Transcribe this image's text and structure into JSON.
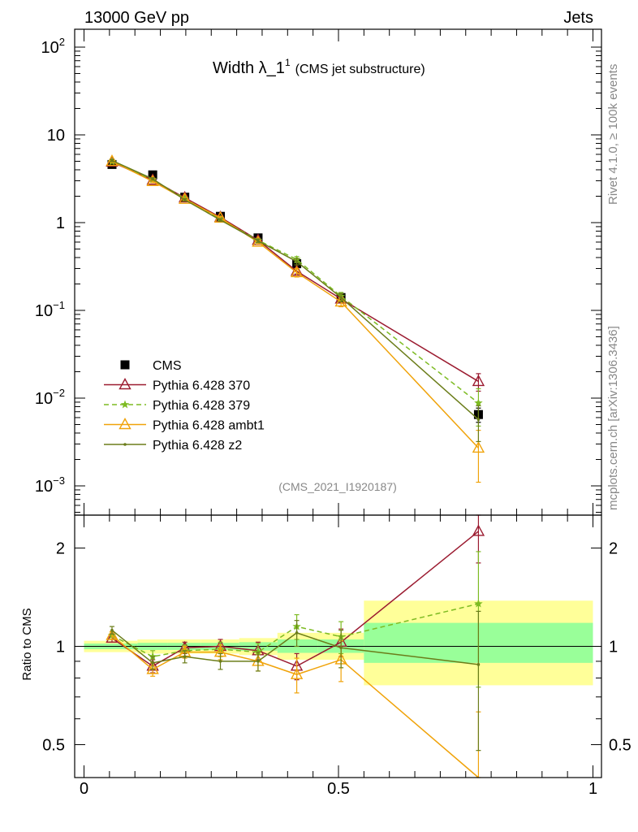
{
  "header": {
    "left": "13000 GeV pp",
    "right": "Jets",
    "title": "Width λ_1",
    "title_sup": "1",
    "title_suffix": "(CMS jet substructure)"
  },
  "side_labels": {
    "rivet": "Rivet 4.1.0, ≥ 100k events",
    "mcplots": "mcplots.cern.ch [arXiv:1306.3436]"
  },
  "analysis_id": "(CMS_2021_I1920187)",
  "ratio_ylabel": "Ratio to CMS",
  "main_yticks": [
    {
      "base": "10",
      "sup": "2"
    },
    {
      "base": "10",
      "sup": ""
    },
    {
      "base": "1",
      "sup": ""
    },
    {
      "base": "10",
      "sup": "−1"
    },
    {
      "base": "10",
      "sup": "−2"
    },
    {
      "base": "10",
      "sup": "−3"
    }
  ],
  "ratio_yticks": [
    "2",
    "1",
    "0.5"
  ],
  "xticks": [
    "0",
    "0.5",
    "1"
  ],
  "chart_data": [
    {
      "type": "line",
      "panel": "main",
      "yscale": "log",
      "title": "Width λ_1^1 (CMS jet substructure)",
      "xlabel": "",
      "ylabel": "",
      "xlim": [
        0,
        1
      ],
      "ylim": [
        0.0007,
        150
      ],
      "x": [
        0.055,
        0.135,
        0.198,
        0.268,
        0.342,
        0.418,
        0.505,
        0.775
      ],
      "series": [
        {
          "name": "CMS",
          "color": "#000000",
          "marker": "square",
          "values": [
            4.6,
            3.5,
            1.95,
            1.18,
            0.67,
            0.34,
            0.14,
            0.0065
          ],
          "errors": [
            0.15,
            0.12,
            0.07,
            0.05,
            0.03,
            0.02,
            0.01,
            0.0012
          ]
        },
        {
          "name": "Pythia 6.428 370",
          "color": "#9b1b30",
          "marker": "triangle-open",
          "dash": "",
          "values": [
            4.9,
            3.05,
            1.92,
            1.15,
            0.63,
            0.28,
            0.135,
            0.0155
          ],
          "errors": [
            0.15,
            0.1,
            0.06,
            0.04,
            0.03,
            0.02,
            0.012,
            0.0035
          ]
        },
        {
          "name": "Pythia 6.428 379",
          "color": "#7dbb22",
          "marker": "star",
          "dash": "6,4",
          "values": [
            4.95,
            3.1,
            1.88,
            1.1,
            0.63,
            0.38,
            0.145,
            0.0088
          ],
          "errors": [
            0.15,
            0.1,
            0.06,
            0.04,
            0.03,
            0.03,
            0.015,
            0.004
          ]
        },
        {
          "name": "Pythia 6.428 ambt1",
          "color": "#f0a30a",
          "marker": "triangle-open",
          "dash": "",
          "values": [
            5.0,
            2.95,
            1.85,
            1.13,
            0.6,
            0.27,
            0.125,
            0.0027
          ],
          "errors": [
            0.15,
            0.1,
            0.06,
            0.04,
            0.03,
            0.03,
            0.015,
            0.0016
          ]
        },
        {
          "name": "Pythia 6.428 z2",
          "color": "#6b7d1a",
          "marker": "dot",
          "dash": "",
          "values": [
            5.1,
            3.15,
            1.82,
            1.07,
            0.62,
            0.36,
            0.14,
            0.0057
          ],
          "errors": [
            0.15,
            0.1,
            0.06,
            0.04,
            0.03,
            0.03,
            0.015,
            0.0025
          ]
        }
      ],
      "legend": "middle-left"
    },
    {
      "type": "line",
      "panel": "ratio",
      "yscale": "log",
      "ylabel": "Ratio to CMS",
      "xlim": [
        0,
        1
      ],
      "ylim": [
        0.42,
        2.4
      ],
      "x": [
        0.055,
        0.135,
        0.198,
        0.268,
        0.342,
        0.418,
        0.505,
        0.775
      ],
      "bands": {
        "edges": [
          0,
          0.105,
          0.165,
          0.23,
          0.305,
          0.38,
          0.46,
          0.55,
          1.0
        ],
        "inner_lo": [
          0.98,
          0.975,
          0.975,
          0.975,
          0.97,
          0.955,
          0.955,
          0.89
        ],
        "inner_hi": [
          1.02,
          1.025,
          1.025,
          1.025,
          1.03,
          1.05,
          1.05,
          1.18
        ],
        "outer_lo": [
          0.96,
          0.95,
          0.95,
          0.95,
          0.94,
          0.91,
          0.91,
          0.76
        ],
        "outer_hi": [
          1.04,
          1.05,
          1.05,
          1.05,
          1.06,
          1.1,
          1.1,
          1.38
        ],
        "inner_color": "#99ff99",
        "outer_color": "#ffff99"
      },
      "series": [
        {
          "name": "Pythia 6.428 370",
          "color": "#9b1b30",
          "marker": "triangle-open",
          "dash": "",
          "values": [
            1.06,
            0.87,
            0.99,
            1.0,
            0.97,
            0.87,
            1.03,
            2.25
          ],
          "errors": [
            0.03,
            0.04,
            0.04,
            0.05,
            0.06,
            0.08,
            0.1,
            0.45
          ]
        },
        {
          "name": "Pythia 6.428 379",
          "color": "#7dbb22",
          "marker": "star",
          "dash": "6,4",
          "values": [
            1.08,
            0.93,
            0.97,
            0.98,
            0.96,
            1.15,
            1.07,
            1.35
          ],
          "errors": [
            0.03,
            0.04,
            0.04,
            0.05,
            0.06,
            0.1,
            0.12,
            0.6
          ]
        },
        {
          "name": "Pythia 6.428 ambt1",
          "color": "#f0a30a",
          "marker": "triangle-open",
          "dash": "",
          "values": [
            1.08,
            0.85,
            0.96,
            0.96,
            0.9,
            0.82,
            0.91,
            0.38
          ],
          "errors": [
            0.03,
            0.04,
            0.04,
            0.05,
            0.06,
            0.1,
            0.13,
            0.25
          ]
        },
        {
          "name": "Pythia 6.428 z2",
          "color": "#6b7d1a",
          "marker": "dot",
          "dash": "",
          "values": [
            1.12,
            0.89,
            0.93,
            0.9,
            0.9,
            1.1,
            0.99,
            0.88
          ],
          "errors": [
            0.03,
            0.04,
            0.04,
            0.05,
            0.06,
            0.1,
            0.13,
            0.4
          ]
        }
      ]
    }
  ]
}
